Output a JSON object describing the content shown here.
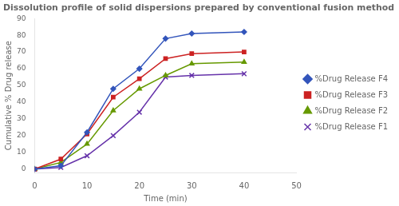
{
  "chart_data": {
    "type": "line",
    "title": "Dissolution profile of solid dispersions prepared by conventional fusion method",
    "x_label": "Time (min)",
    "y_label": "Cumulative % Drug release",
    "x": [
      0,
      5,
      10,
      15,
      20,
      25,
      30,
      40
    ],
    "series": [
      {
        "name": "%Drug Release F4",
        "color": "#3355BB",
        "marker": "diamond",
        "values": [
          0,
          2,
          22,
          48,
          60,
          78,
          81,
          82
        ]
      },
      {
        "name": "%Drug Release F3",
        "color": "#CC2222",
        "marker": "square",
        "values": [
          0,
          6,
          21,
          43,
          54,
          66,
          69,
          70
        ]
      },
      {
        "name": "%Drug Release F2",
        "color": "#669900",
        "marker": "triangle",
        "values": [
          0,
          4,
          15,
          35,
          48,
          56,
          63,
          64
        ]
      },
      {
        "name": "%Drug Release F1",
        "color": "#6633AA",
        "marker": "x",
        "values": [
          0,
          1,
          8,
          20,
          34,
          55,
          56,
          57
        ]
      }
    ],
    "xlim": [
      0,
      50
    ],
    "ylim": [
      -2,
      90
    ],
    "xticks": [
      0,
      10,
      20,
      30,
      40,
      50
    ],
    "yticks": [
      0,
      10,
      20,
      30,
      40,
      50,
      60,
      70,
      80,
      90
    ],
    "grid": false,
    "legend": "right"
  }
}
